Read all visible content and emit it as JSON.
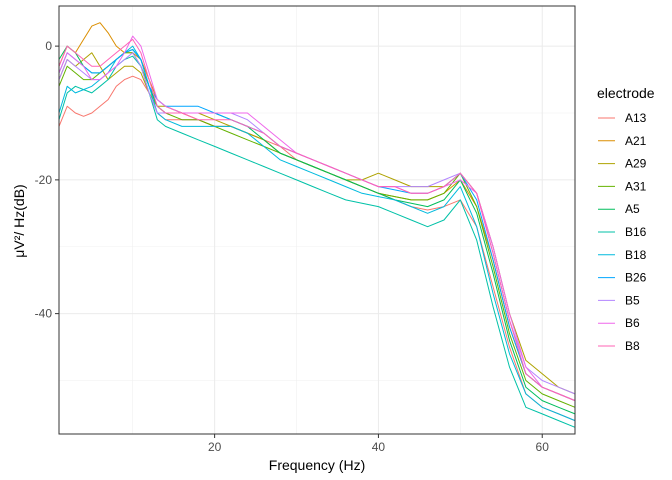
{
  "chart_data": {
    "type": "line",
    "title": "",
    "xlabel": "Frequency (Hz)",
    "ylabel": "μV²/ Hz(dB)",
    "xlim": [
      1,
      64
    ],
    "ylim": [
      -58,
      6
    ],
    "xticks": [
      20,
      40,
      60
    ],
    "yticks": [
      0,
      -20,
      -40
    ],
    "grid": true,
    "legend_title": "electrode",
    "legend_position": "right",
    "x": [
      1,
      2,
      3,
      4,
      5,
      6,
      7,
      8,
      9,
      10,
      11,
      12,
      13,
      14,
      16,
      18,
      20,
      22,
      24,
      26,
      28,
      30,
      32,
      34,
      36,
      38,
      40,
      42,
      44,
      46,
      48,
      50,
      52,
      54,
      56,
      58,
      60,
      62,
      64
    ],
    "series": [
      {
        "name": "A13",
        "color": "#F8766D",
        "values": [
          -12,
          -9,
          -10,
          -10.5,
          -10,
          -9,
          -8,
          -6,
          -5,
          -4.5,
          -5,
          -7,
          -10,
          -11,
          -11,
          -11,
          -12,
          -12,
          -13,
          -14,
          -15,
          -17,
          -18,
          -19,
          -20,
          -21,
          -22,
          -23,
          -24,
          -24.5,
          -24,
          -23,
          -27,
          -36,
          -45,
          -52,
          -54,
          -55,
          -56
        ]
      },
      {
        "name": "A21",
        "color": "#DB8E00",
        "values": [
          -3,
          0,
          -1,
          1,
          3,
          3.5,
          2,
          0,
          -1,
          -1,
          -2,
          -5,
          -8,
          -9,
          -10,
          -11,
          -12,
          -12,
          -13,
          -14,
          -16,
          -17,
          -18,
          -19,
          -20,
          -21,
          -22,
          -22.5,
          -23,
          -23,
          -22,
          -20,
          -24,
          -32,
          -42,
          -49,
          -51,
          -52,
          -53
        ]
      },
      {
        "name": "A29",
        "color": "#AEA200",
        "values": [
          -5,
          -2,
          -3,
          -2,
          -1,
          -3,
          -5,
          -4,
          -3,
          -3,
          -4,
          -7,
          -9,
          -9,
          -10,
          -10,
          -11,
          -12,
          -13,
          -14,
          -16,
          -17,
          -18,
          -19,
          -20,
          -20,
          -19,
          -20,
          -21,
          -21,
          -21,
          -19,
          -22,
          -30,
          -40,
          -47,
          -49,
          -51,
          -52
        ]
      },
      {
        "name": "A31",
        "color": "#64B200",
        "values": [
          -6,
          -3,
          -4,
          -5,
          -5,
          -4,
          -3,
          -2,
          -1,
          -1,
          -3,
          -6,
          -9,
          -10,
          -11,
          -11,
          -12,
          -13,
          -14,
          -15,
          -16,
          -17,
          -18,
          -19,
          -20,
          -21,
          -22,
          -22.5,
          -23,
          -23,
          -22,
          -19,
          -24,
          -33,
          -43,
          -50,
          -52,
          -53,
          -54
        ]
      },
      {
        "name": "A5",
        "color": "#00BD5C",
        "values": [
          -2,
          0,
          -1,
          -3,
          -4,
          -4,
          -3,
          -2,
          -1,
          -0.5,
          -2,
          -6,
          -9,
          -10,
          -10,
          -10,
          -10,
          -11,
          -12,
          -14,
          -16,
          -17,
          -18,
          -19,
          -20,
          -21,
          -22,
          -23,
          -23.5,
          -24,
          -23,
          -20,
          -25,
          -34,
          -44,
          -51,
          -53,
          -54,
          -55
        ]
      },
      {
        "name": "B16",
        "color": "#00C1A7",
        "values": [
          -11,
          -7,
          -6,
          -6.5,
          -7,
          -6,
          -5,
          -3,
          -2,
          -1.5,
          -3,
          -7,
          -11,
          -12,
          -13,
          -14,
          -15,
          -16,
          -17,
          -18,
          -19,
          -20,
          -21,
          -22,
          -23,
          -23.5,
          -24,
          -25,
          -26,
          -27,
          -26,
          -23,
          -29,
          -39,
          -48,
          -54,
          -55,
          -56,
          -57
        ]
      },
      {
        "name": "B18",
        "color": "#00BADE",
        "values": [
          -10,
          -6,
          -7,
          -6.5,
          -6,
          -5,
          -4,
          -2,
          -1,
          0,
          -2,
          -6,
          -10,
          -11,
          -12,
          -12,
          -12,
          -12,
          -13,
          -15,
          -17,
          -18,
          -19,
          -20,
          -21,
          -22,
          -22.5,
          -23,
          -24,
          -25,
          -24,
          -21,
          -27,
          -37,
          -46,
          -52,
          -54,
          -55,
          -56
        ]
      },
      {
        "name": "B26",
        "color": "#00A6FF",
        "values": [
          -4,
          -1,
          -2,
          -3,
          -4,
          -4,
          -3,
          -2,
          -1,
          -0.5,
          -2,
          -6,
          -8,
          -9,
          -9,
          -9,
          -10,
          -11,
          -12,
          -13,
          -15,
          -16,
          -17,
          -18,
          -19,
          -20,
          -21,
          -21.5,
          -22,
          -22,
          -21,
          -19,
          -23,
          -32,
          -42,
          -49,
          -51,
          -52,
          -53
        ]
      },
      {
        "name": "B5",
        "color": "#B385FF",
        "values": [
          -5,
          -2,
          -3,
          -4,
          -5,
          -5,
          -4,
          -3,
          -2,
          -1,
          -3,
          -7,
          -10,
          -10,
          -10,
          -10,
          -10,
          -10,
          -11,
          -13,
          -15,
          -16,
          -17,
          -18,
          -19,
          -20,
          -21,
          -21,
          -21,
          -21,
          -20,
          -19,
          -22,
          -31,
          -41,
          -48,
          -50,
          -51,
          -52
        ]
      },
      {
        "name": "B6",
        "color": "#EF67EB",
        "values": [
          -4,
          -1,
          -2,
          -3,
          -5,
          -5,
          -4,
          -3,
          -1,
          1.5,
          0,
          -4,
          -8,
          -9,
          -10,
          -10,
          -10,
          -10,
          -10,
          -12,
          -14,
          -16,
          -17,
          -18,
          -19,
          -20,
          -21,
          -21,
          -22,
          -22,
          -21,
          -20,
          -22,
          -30,
          -40,
          -48,
          -51,
          -52,
          -53
        ]
      },
      {
        "name": "B8",
        "color": "#FF63B6",
        "values": [
          -3,
          0,
          -1,
          -2,
          -3,
          -3,
          -2,
          -1,
          0,
          1,
          -1,
          -5,
          -9,
          -10,
          -10,
          -11,
          -11,
          -11,
          -12,
          -13,
          -15,
          -16,
          -17,
          -18,
          -19,
          -20,
          -21,
          -21,
          -22,
          -22,
          -21,
          -19,
          -22,
          -31,
          -41,
          -49,
          -51,
          -52,
          -53
        ]
      }
    ]
  }
}
